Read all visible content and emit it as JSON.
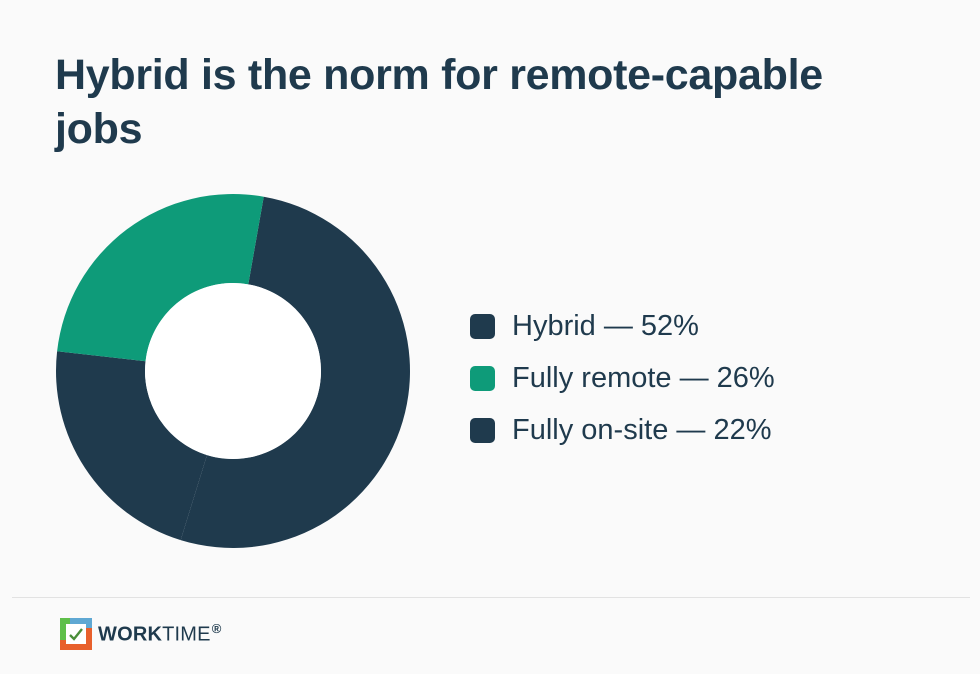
{
  "chart_data": {
    "type": "pie",
    "donut": true,
    "title": "Hybrid is the norm for remote-capable jobs",
    "categories": [
      "Hybrid",
      "Fully remote",
      "Fully on-site"
    ],
    "values": [
      52,
      26,
      22
    ],
    "unit": "%",
    "colors": [
      "#1f3a4d",
      "#0e9b79",
      "#1f3a4d"
    ],
    "legend_position": "right",
    "legend_labels": [
      "Hybrid — 52%",
      "Fully remote — 26%",
      "Fully on-site — 22%"
    ]
  },
  "footer": {
    "brand_bold": "WORK",
    "brand_light": "TIME",
    "brand_mark": "®"
  }
}
